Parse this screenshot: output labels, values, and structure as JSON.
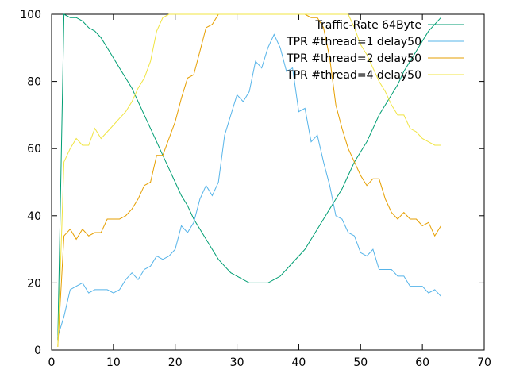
{
  "chart_data": {
    "type": "line",
    "title": "",
    "xlabel": "",
    "ylabel": "",
    "xlim": [
      0,
      70
    ],
    "ylim": [
      0,
      100
    ],
    "xticks": [
      0,
      10,
      20,
      30,
      40,
      50,
      60,
      70
    ],
    "yticks": [
      0,
      20,
      40,
      60,
      80,
      100
    ],
    "grid": false,
    "legend_position": "top-right",
    "series": [
      {
        "name": "Traffic-Rate 64Byte",
        "color": "#009e73",
        "x": [
          1,
          2,
          3,
          4,
          5,
          6,
          7,
          8,
          9,
          10,
          11,
          12,
          13,
          14,
          15,
          16,
          17,
          18,
          19,
          20,
          21,
          22,
          23,
          24,
          25,
          26,
          27,
          28,
          29,
          30,
          31,
          32,
          33,
          34,
          35,
          36,
          37,
          38,
          39,
          40,
          41,
          42,
          43,
          44,
          45,
          46,
          47,
          48,
          49,
          50,
          51,
          52,
          53,
          54,
          55,
          56,
          57,
          58,
          59,
          60,
          61,
          62,
          63
        ],
        "y": [
          3,
          100,
          99,
          99,
          98,
          96,
          95,
          93,
          90,
          87,
          84,
          81,
          78,
          74,
          70,
          66,
          62,
          58,
          54,
          50,
          46,
          43,
          39,
          36,
          33,
          30,
          27,
          25,
          23,
          22,
          21,
          20,
          20,
          20,
          20,
          21,
          22,
          24,
          26,
          28,
          30,
          33,
          36,
          39,
          42,
          45,
          48,
          52,
          56,
          59,
          62,
          66,
          70,
          73,
          76,
          79,
          83,
          86,
          89,
          92,
          95,
          97,
          99
        ]
      },
      {
        "name": "TPR #thread=1 delay50",
        "color": "#56b4e9",
        "x": [
          1,
          2,
          3,
          4,
          5,
          6,
          7,
          8,
          9,
          10,
          11,
          12,
          13,
          14,
          15,
          16,
          17,
          18,
          19,
          20,
          21,
          22,
          23,
          24,
          25,
          26,
          27,
          28,
          29,
          30,
          31,
          32,
          33,
          34,
          35,
          36,
          37,
          38,
          39,
          40,
          41,
          42,
          43,
          44,
          45,
          46,
          47,
          48,
          49,
          50,
          51,
          52,
          53,
          54,
          55,
          56,
          57,
          58,
          59,
          60,
          61,
          62,
          63
        ],
        "y": [
          4,
          10,
          18,
          19,
          20,
          17,
          18,
          18,
          18,
          17,
          18,
          21,
          23,
          21,
          24,
          25,
          28,
          27,
          28,
          30,
          37,
          35,
          38,
          45,
          49,
          46,
          50,
          64,
          70,
          76,
          74,
          77,
          86,
          84,
          90,
          94,
          90,
          83,
          84,
          71,
          72,
          62,
          64,
          56,
          49,
          40,
          39,
          35,
          34,
          29,
          28,
          30,
          24,
          24,
          24,
          22,
          22,
          19,
          19,
          19,
          17,
          18,
          16
        ]
      },
      {
        "name": "TPR #thread=2 delay50",
        "color": "#e69f00",
        "x": [
          1,
          2,
          3,
          4,
          5,
          6,
          7,
          8,
          9,
          10,
          11,
          12,
          13,
          14,
          15,
          16,
          17,
          18,
          19,
          20,
          21,
          22,
          23,
          24,
          25,
          26,
          27,
          28,
          29,
          30,
          31,
          32,
          33,
          34,
          35,
          36,
          37,
          38,
          39,
          40,
          41,
          42,
          43,
          44,
          45,
          46,
          47,
          48,
          49,
          50,
          51,
          52,
          53,
          54,
          55,
          56,
          57,
          58,
          59,
          60,
          61,
          62,
          63
        ],
        "y": [
          1,
          34,
          36,
          33,
          36,
          34,
          35,
          35,
          39,
          39,
          39,
          40,
          42,
          45,
          49,
          50,
          58,
          58,
          63,
          68,
          75,
          81,
          82,
          89,
          96,
          97,
          100,
          100,
          100,
          100,
          100,
          100,
          100,
          100,
          100,
          100,
          100,
          100,
          100,
          100,
          100,
          99,
          99,
          96,
          87,
          73,
          66,
          60,
          56,
          52,
          49,
          51,
          51,
          45,
          41,
          39,
          41,
          39,
          39,
          37,
          38,
          34,
          37
        ]
      },
      {
        "name": "TPR #thread=4 delay50",
        "color": "#f0e442",
        "x": [
          1,
          2,
          3,
          4,
          5,
          6,
          7,
          8,
          9,
          10,
          11,
          12,
          13,
          14,
          15,
          16,
          17,
          18,
          19,
          20,
          21,
          22,
          23,
          24,
          25,
          26,
          27,
          28,
          29,
          30,
          31,
          32,
          33,
          34,
          35,
          36,
          37,
          38,
          39,
          40,
          41,
          42,
          43,
          44,
          45,
          46,
          47,
          48,
          49,
          50,
          51,
          52,
          53,
          54,
          55,
          56,
          57,
          58,
          59,
          60,
          61,
          62,
          63
        ],
        "y": [
          1,
          56,
          60,
          63,
          61,
          61,
          66,
          63,
          65,
          67,
          69,
          71,
          74,
          78,
          81,
          86,
          95,
          99,
          100,
          100,
          100,
          100,
          100,
          100,
          100,
          100,
          100,
          100,
          100,
          100,
          100,
          100,
          100,
          100,
          100,
          100,
          100,
          100,
          100,
          100,
          100,
          100,
          100,
          100,
          100,
          100,
          100,
          100,
          96,
          91,
          88,
          84,
          80,
          77,
          73,
          70,
          70,
          66,
          65,
          63,
          62,
          61,
          61
        ]
      }
    ]
  }
}
